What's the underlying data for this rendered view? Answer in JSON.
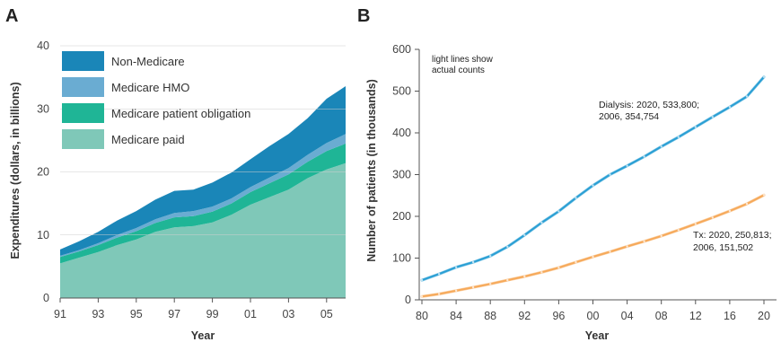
{
  "chart_data": [
    {
      "panel": "A",
      "type": "area",
      "stacked": true,
      "xlabel": "Year",
      "ylabel": "Expenditures (dollars, in billions)",
      "ylim": [
        0,
        40
      ],
      "yticks": [
        "0",
        "10",
        "20",
        "30",
        "40"
      ],
      "xticks": [
        "91",
        "93",
        "95",
        "97",
        "99",
        "01",
        "03",
        "05"
      ],
      "x": [
        1991,
        1992,
        1993,
        1994,
        1995,
        1996,
        1997,
        1998,
        1999,
        2000,
        2001,
        2002,
        2003,
        2004,
        2005,
        2006
      ],
      "series": [
        {
          "name": "Medicare paid",
          "color": "#7fc8b8",
          "values": [
            5.5,
            6.4,
            7.3,
            8.4,
            9.3,
            10.5,
            11.2,
            11.4,
            12.0,
            13.2,
            14.8,
            16.0,
            17.2,
            19.0,
            20.4,
            21.4
          ]
        },
        {
          "name": "Medicare patient obligation",
          "color": "#1fb596",
          "values": [
            1.0,
            1.0,
            1.1,
            1.2,
            1.3,
            1.4,
            1.6,
            1.6,
            1.7,
            1.8,
            2.0,
            2.2,
            2.4,
            2.6,
            2.9,
            3.1
          ]
        },
        {
          "name": "Medicare HMO",
          "color": "#6aacd2",
          "values": [
            0.2,
            0.2,
            0.3,
            0.4,
            0.5,
            0.6,
            0.7,
            0.8,
            0.8,
            0.8,
            0.8,
            0.9,
            1.0,
            1.1,
            1.3,
            1.5
          ]
        },
        {
          "name": "Non-Medicare",
          "color": "#1a86b8",
          "values": [
            1.0,
            1.4,
            1.8,
            2.3,
            2.7,
            3.1,
            3.5,
            3.4,
            3.8,
            4.1,
            4.4,
            5.0,
            5.4,
            5.8,
            7.0,
            7.6
          ]
        }
      ],
      "legend_order": [
        "Non-Medicare",
        "Medicare HMO",
        "Medicare patient obligation",
        "Medicare paid"
      ],
      "legend_placement": "top-left",
      "grid": false
    },
    {
      "panel": "B",
      "type": "line",
      "xlabel": "Year",
      "ylabel": "Number of patients (in thousands)",
      "ylim": [
        0,
        600
      ],
      "yticks": [
        "0",
        "100",
        "200",
        "300",
        "400",
        "500",
        "600"
      ],
      "xticks": [
        "80",
        "84",
        "88",
        "92",
        "96",
        "00",
        "04",
        "08",
        "12",
        "16",
        "20"
      ],
      "x": [
        1980,
        1982,
        1984,
        1986,
        1988,
        1990,
        1992,
        1994,
        1996,
        1998,
        2000,
        2002,
        2004,
        2006,
        2008,
        2010,
        2012,
        2014,
        2016,
        2018,
        2020
      ],
      "series": [
        {
          "name": "Dialysis",
          "color": "#2a9fd4",
          "values": [
            47,
            62,
            78,
            90,
            105,
            127,
            155,
            185,
            212,
            244,
            274,
            300,
            321,
            343,
            367,
            390,
            414,
            438,
            462,
            487,
            534
          ]
        },
        {
          "name": "Tx",
          "color": "#f6a95a",
          "values": [
            8,
            14,
            22,
            30,
            38,
            47,
            56,
            66,
            77,
            90,
            103,
            115,
            128,
            140,
            153,
            167,
            182,
            197,
            213,
            230,
            251
          ]
        }
      ],
      "annotations": {
        "light_lines_note": [
          "light lines show",
          "actual counts"
        ],
        "dialysis_label": [
          "Dialysis: 2020, 533,800;",
          "2006, 354,754"
        ],
        "tx_label": [
          "Tx: 2020, 250,813;",
          "2006, 151,502"
        ]
      },
      "grid": false
    }
  ]
}
